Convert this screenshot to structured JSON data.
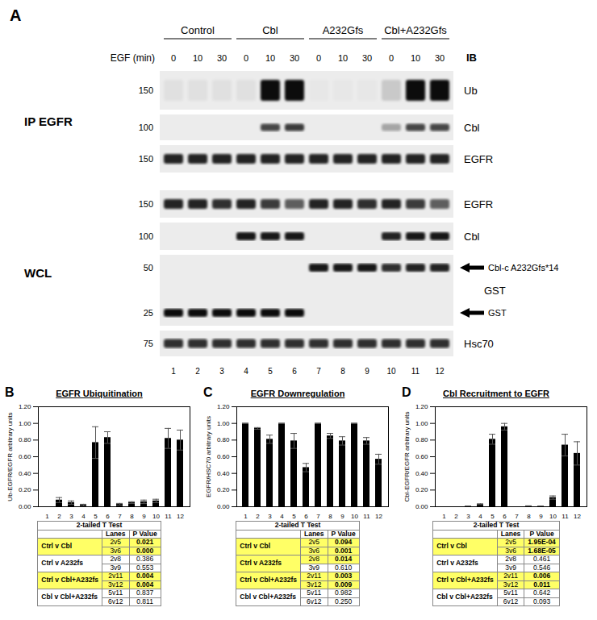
{
  "blot": {
    "panel": "A",
    "groups": [
      "Control",
      "Cbl",
      "A232Gfs",
      "Cbl+A232Gfs"
    ],
    "egf_label": "EGF (min)",
    "times": [
      "0",
      "10",
      "30",
      "0",
      "10",
      "30",
      "0",
      "10",
      "30",
      "0",
      "10",
      "30"
    ],
    "ib_label": "IB",
    "lanes": [
      "1",
      "2",
      "3",
      "4",
      "5",
      "6",
      "7",
      "8",
      "9",
      "10",
      "11",
      "12"
    ],
    "sections": [
      {
        "label": "IP EGFR",
        "rows": [
          {
            "label": "Ub",
            "mw": [
              "150"
            ],
            "bands": [
              0.05,
              0.05,
              0.05,
              0.05,
              0.95,
              0.95,
              0.02,
              0.02,
              0.02,
              0.15,
              0.95,
              0.95
            ]
          },
          {
            "label": "Cbl",
            "mw": [
              "100"
            ],
            "bands": [
              0,
              0,
              0,
              0,
              0.7,
              0.75,
              0,
              0,
              0,
              0.3,
              0.7,
              0.7
            ]
          },
          {
            "label": "EGFR",
            "mw": [
              "150"
            ],
            "bands": [
              0.85,
              0.85,
              0.85,
              0.85,
              0.85,
              0.85,
              0.85,
              0.85,
              0.85,
              0.85,
              0.85,
              0.85
            ]
          }
        ]
      },
      {
        "label": "WCL",
        "rows": [
          {
            "label": "EGFR",
            "mw": [
              "150"
            ],
            "bands": [
              0.85,
              0.85,
              0.8,
              0.85,
              0.75,
              0.6,
              0.85,
              0.85,
              0.8,
              0.85,
              0.75,
              0.6
            ]
          },
          {
            "label": "Cbl",
            "mw": [
              "100"
            ],
            "bands": [
              0,
              0,
              0,
              0.9,
              0.9,
              0.9,
              0,
              0,
              0,
              0.85,
              0.9,
              0.9
            ]
          },
          {
            "label": "GST",
            "mw": [
              "50",
              "25"
            ],
            "arrows": [
              "Cbl-c A232Gfs*14",
              "GST"
            ],
            "bands_upper": [
              0,
              0,
              0,
              0,
              0,
              0,
              0.9,
              0.9,
              0.9,
              0.8,
              0.85,
              0.85
            ],
            "bands_lower": [
              0.95,
              0.95,
              0.95,
              0.95,
              0.95,
              0.95,
              0,
              0,
              0,
              0,
              0,
              0
            ]
          },
          {
            "label": "Hsc70",
            "mw": [
              "75"
            ],
            "bands": [
              0.8,
              0.8,
              0.8,
              0.8,
              0.8,
              0.8,
              0.8,
              0.8,
              0.8,
              0.8,
              0.8,
              0.8
            ]
          }
        ]
      }
    ]
  },
  "chart_data": [
    {
      "panel": "B",
      "type": "bar",
      "title": "EGFR Ubiquitination",
      "y_label": "Ub-EGFR/EGFR arbitrary units",
      "color": "#000000",
      "categories": [
        "1",
        "2",
        "3",
        "4",
        "5",
        "6",
        "7",
        "8",
        "9",
        "10",
        "11",
        "12"
      ],
      "values": [
        0,
        0.08,
        0.05,
        0.02,
        0.77,
        0.83,
        0.03,
        0.05,
        0.06,
        0.07,
        0.82,
        0.8
      ],
      "errors": [
        0,
        0.03,
        0.02,
        0.01,
        0.19,
        0.07,
        0.01,
        0.01,
        0.02,
        0.02,
        0.12,
        0.12
      ],
      "ylim": [
        0,
        1.2
      ],
      "yticks": [
        {
          "value": 0,
          "label": "0.00"
        },
        {
          "value": 0.2,
          "label": "0.20"
        },
        {
          "value": 0.4,
          "label": "0.40"
        },
        {
          "value": 0.6,
          "label": "0.60"
        },
        {
          "value": 0.8,
          "label": "0.80"
        },
        {
          "value": 1.0,
          "label": "1.00"
        },
        {
          "value": 1.2,
          "label": "1.20"
        }
      ],
      "table": {
        "title": "2-tailed T Test",
        "columns": [
          "Lanes",
          "P Value"
        ],
        "groups": [
          {
            "name": "Ctrl v Cbl",
            "rows": [
              {
                "lanes": "2v5",
                "p": "0.021",
                "highlight": true
              },
              {
                "lanes": "3v6",
                "p": "0.000",
                "highlight": true
              }
            ]
          },
          {
            "name": "Ctrl v A232fs",
            "rows": [
              {
                "lanes": "2v8",
                "p": "0.386",
                "highlight": false
              },
              {
                "lanes": "3v9",
                "p": "0.553",
                "highlight": false
              }
            ]
          },
          {
            "name": "Ctrl v Cbl+A232fs",
            "rows": [
              {
                "lanes": "2v11",
                "p": "0.004",
                "highlight": true
              },
              {
                "lanes": "3v12",
                "p": "0.004",
                "highlight": true
              }
            ]
          },
          {
            "name": "Cbl v Cbl+A232fs",
            "rows": [
              {
                "lanes": "5v11",
                "p": "0.837",
                "highlight": false
              },
              {
                "lanes": "6v12",
                "p": "0.811",
                "highlight": false
              }
            ]
          }
        ]
      }
    },
    {
      "panel": "C",
      "type": "bar",
      "title": "EGFR Downregulation",
      "y_label": "EGFR/HSC70 arbitrary units",
      "color": "#000000",
      "categories": [
        "1",
        "2",
        "3",
        "4",
        "5",
        "6",
        "7",
        "8",
        "9",
        "10",
        "11",
        "12"
      ],
      "values": [
        1.0,
        0.94,
        0.81,
        1.0,
        0.79,
        0.47,
        1.0,
        0.85,
        0.79,
        1.0,
        0.79,
        0.57
      ],
      "errors": [
        0,
        0.01,
        0.05,
        0,
        0.09,
        0.05,
        0,
        0.03,
        0.05,
        0,
        0.04,
        0.06
      ],
      "ylim": [
        0,
        1.2
      ],
      "yticks": [
        {
          "value": 0,
          "label": "0.00"
        },
        {
          "value": 0.2,
          "label": "0.20"
        },
        {
          "value": 0.4,
          "label": "0.40"
        },
        {
          "value": 0.6,
          "label": "0.60"
        },
        {
          "value": 0.8,
          "label": "0.80"
        },
        {
          "value": 1.0,
          "label": "1.00"
        },
        {
          "value": 1.2,
          "label": "1.20"
        }
      ],
      "table": {
        "title": "2-tailed T Test",
        "columns": [
          "Lanes",
          "P Value"
        ],
        "groups": [
          {
            "name": "Ctrl v Cbl",
            "rows": [
              {
                "lanes": "2v5",
                "p": "0.094",
                "highlight": true
              },
              {
                "lanes": "3v6",
                "p": "0.001",
                "highlight": true
              }
            ]
          },
          {
            "name": "Ctrl v A232fs",
            "rows": [
              {
                "lanes": "2v8",
                "p": "0.014",
                "highlight": true
              },
              {
                "lanes": "3v9",
                "p": "0.610",
                "highlight": false
              }
            ]
          },
          {
            "name": "Ctrl v Cbl+A232fs",
            "rows": [
              {
                "lanes": "2v11",
                "p": "0.003",
                "highlight": true
              },
              {
                "lanes": "3v12",
                "p": "0.009",
                "highlight": true
              }
            ]
          },
          {
            "name": "Cbl v Cbl+A232fs",
            "rows": [
              {
                "lanes": "5v11",
                "p": "0.982",
                "highlight": false
              },
              {
                "lanes": "6v12",
                "p": "0.250",
                "highlight": false
              }
            ]
          }
        ]
      }
    },
    {
      "panel": "D",
      "type": "bar",
      "title": "Cbl Recruitment to EGFR",
      "y_label": "Cbl-EGFR/EGFR arbitrary units",
      "color": "#000000",
      "categories": [
        "1",
        "2",
        "3",
        "4",
        "5",
        "6",
        "7",
        "8",
        "9",
        "10",
        "11",
        "12"
      ],
      "values": [
        0,
        0,
        0.005,
        0.03,
        0.81,
        0.96,
        0,
        0.01,
        0.005,
        0.11,
        0.74,
        0.64
      ],
      "errors": [
        0,
        0,
        0,
        0.005,
        0.06,
        0.04,
        0,
        0,
        0,
        0.02,
        0.13,
        0.14
      ],
      "ylim": [
        0,
        1.2
      ],
      "yticks": [
        {
          "value": 0,
          "label": "0.00"
        },
        {
          "value": 0.2,
          "label": "0.20"
        },
        {
          "value": 0.4,
          "label": "0.40"
        },
        {
          "value": 0.6,
          "label": "0.60"
        },
        {
          "value": 0.8,
          "label": "0.80"
        },
        {
          "value": 1.0,
          "label": "1.00"
        },
        {
          "value": 1.2,
          "label": "1.20"
        }
      ],
      "table": {
        "title": "2-tailed T Test",
        "columns": [
          "Lanes",
          "P Value"
        ],
        "groups": [
          {
            "name": "Ctrl v Cbl",
            "rows": [
              {
                "lanes": "2v5",
                "p": "1.95E-04",
                "highlight": true
              },
              {
                "lanes": "3v6",
                "p": "1.68E-05",
                "highlight": true
              }
            ]
          },
          {
            "name": "Ctrl v A232fs",
            "rows": [
              {
                "lanes": "2v8",
                "p": "0.461",
                "highlight": false
              },
              {
                "lanes": "3v9",
                "p": "0.546",
                "highlight": false
              }
            ]
          },
          {
            "name": "Ctrl v Cbl+A232fs",
            "rows": [
              {
                "lanes": "2v11",
                "p": "0.006",
                "highlight": true
              },
              {
                "lanes": "3v12",
                "p": "0.011",
                "highlight": true
              }
            ]
          },
          {
            "name": "Cbl v Cbl+A232fs",
            "rows": [
              {
                "lanes": "5v11",
                "p": "0.642",
                "highlight": false
              },
              {
                "lanes": "6v12",
                "p": "0.093",
                "highlight": false
              }
            ]
          }
        ]
      }
    }
  ]
}
